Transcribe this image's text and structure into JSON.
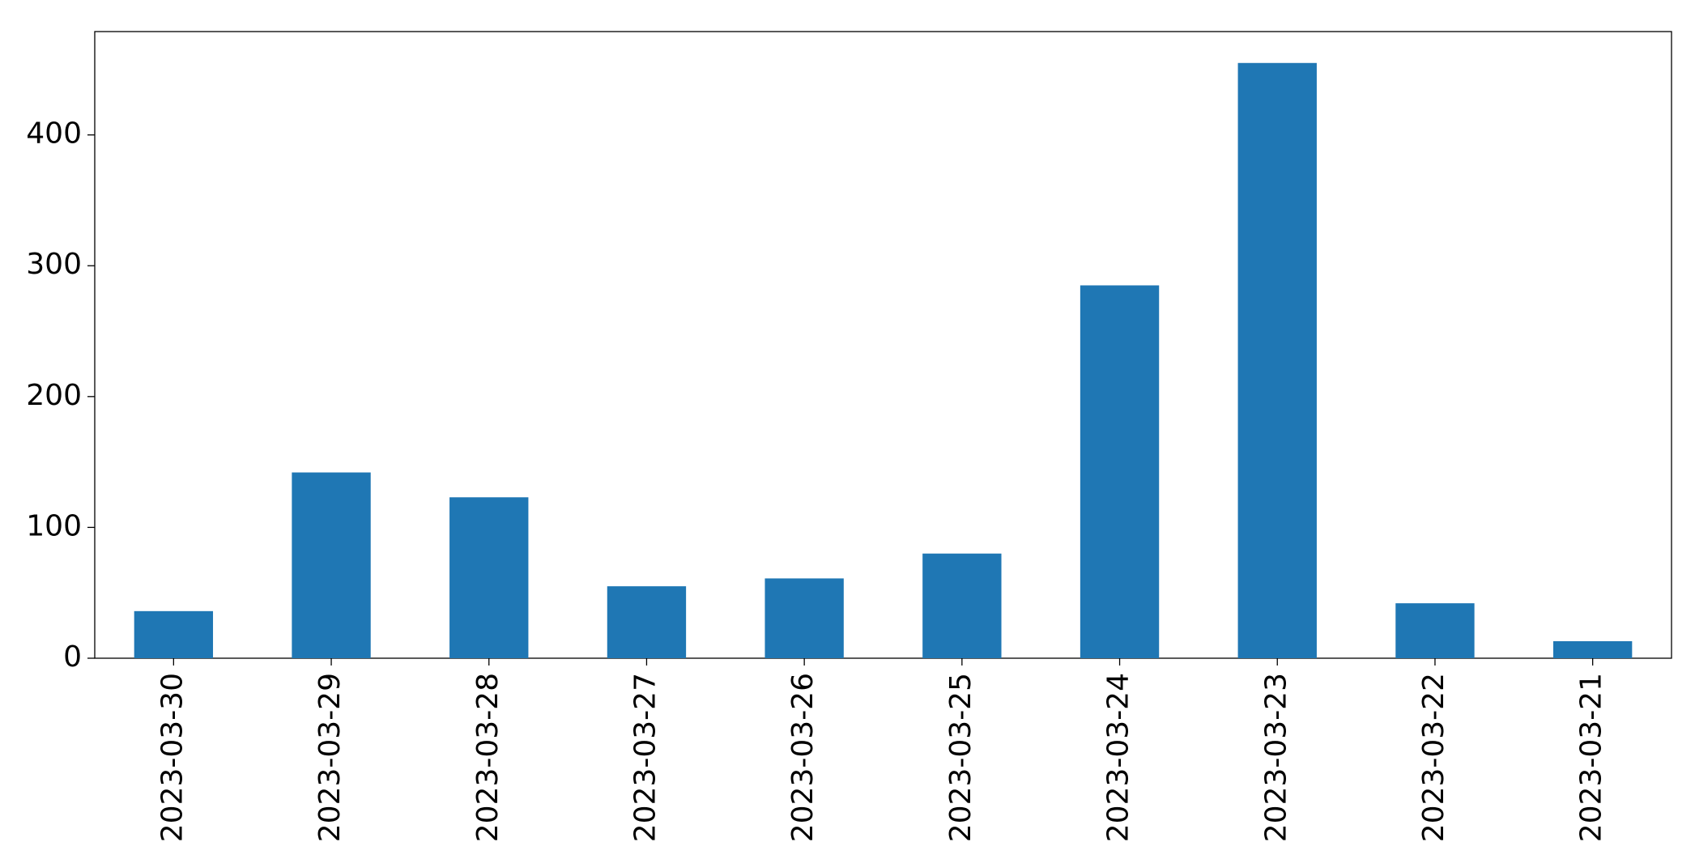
{
  "chart_data": {
    "type": "bar",
    "categories": [
      "2023-03-30",
      "2023-03-29",
      "2023-03-28",
      "2023-03-27",
      "2023-03-26",
      "2023-03-25",
      "2023-03-24",
      "2023-03-23",
      "2023-03-22",
      "2023-03-21"
    ],
    "values": [
      36,
      142,
      123,
      55,
      61,
      80,
      285,
      455,
      42,
      13
    ],
    "color": "#1f77b4",
    "ylim": [
      0,
      479
    ],
    "yticks": [
      0,
      100,
      200,
      300,
      400
    ],
    "grid": false
  }
}
